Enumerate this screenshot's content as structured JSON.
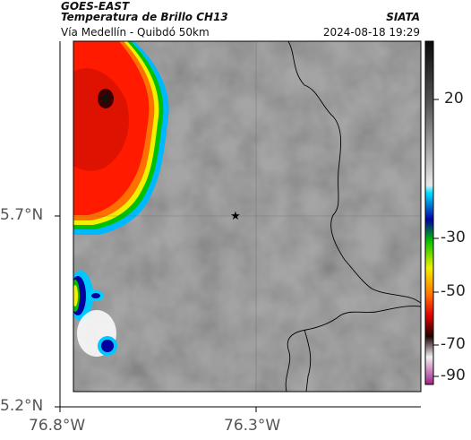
{
  "header": {
    "product": "GOES-EAST",
    "channel": "Temperatura de Brillo CH13",
    "region": "Vía Medellín - Quibdó 50km",
    "organization": "SIATA",
    "timestamp": "2024-08-18 19:29"
  },
  "map": {
    "type": "satellite brightness temperature",
    "y_axis_labels": [
      "5.7°N",
      "5.2°N"
    ],
    "x_axis_labels": [
      "76.8°W",
      "76.3°W"
    ],
    "marker": "star-icon"
  },
  "colorbar": {
    "tick_labels": [
      "20",
      "-30",
      "-50",
      "-70",
      "-90"
    ]
  },
  "colors": {
    "cold_red": "#ff1a00",
    "cloud_gray": "#9a9a9a",
    "border": "#000000"
  }
}
